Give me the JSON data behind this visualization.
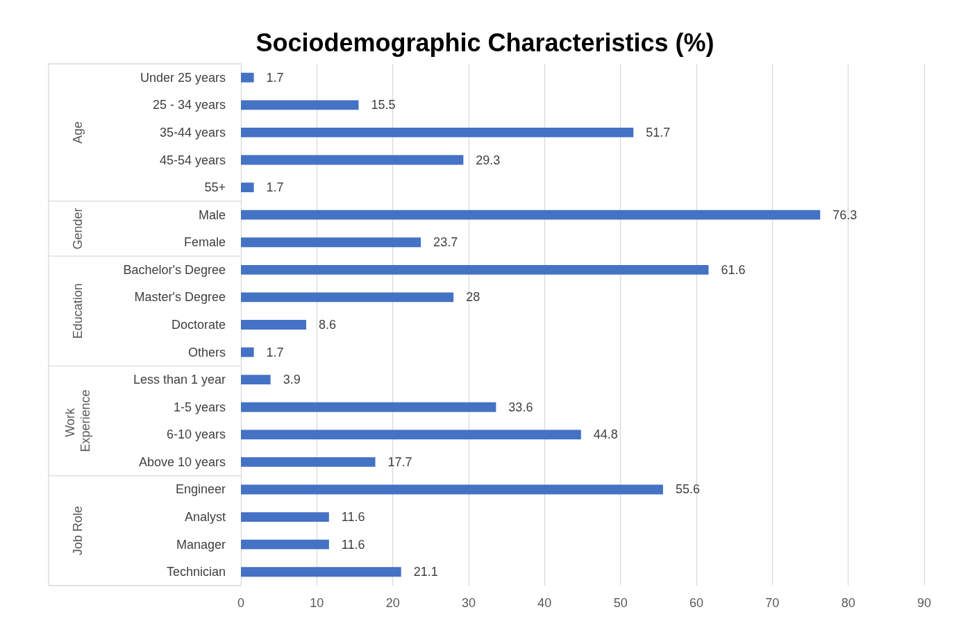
{
  "chart_data": {
    "type": "bar",
    "title": "Sociodemographic Characteristics (%)",
    "orientation": "horizontal",
    "categories": [
      "Under 25 years",
      "25 - 34 years",
      "35-44 years",
      "45-54 years",
      "55+",
      "Male",
      "Female",
      "Bachelor's Degree",
      "Master's Degree",
      "Doctorate",
      "Others",
      "Less than 1 year",
      "1-5 years",
      "6-10 years",
      "Above 10 years",
      "Engineer",
      "Analyst",
      "Manager",
      "Technician"
    ],
    "values": [
      1.7,
      15.5,
      51.7,
      29.3,
      1.7,
      76.3,
      23.7,
      61.6,
      28,
      8.6,
      1.7,
      3.9,
      33.6,
      44.8,
      17.7,
      55.6,
      11.6,
      11.6,
      21.1
    ],
    "color": "#4472c4",
    "xlim": [
      0,
      90
    ],
    "xticks": [
      0,
      10,
      20,
      30,
      40,
      50,
      60,
      70,
      80,
      90
    ],
    "grid": "x",
    "data_labels": true,
    "annotations": [
      "Age",
      "Gender",
      "Education",
      "Work Experience",
      "Job Role"
    ]
  }
}
